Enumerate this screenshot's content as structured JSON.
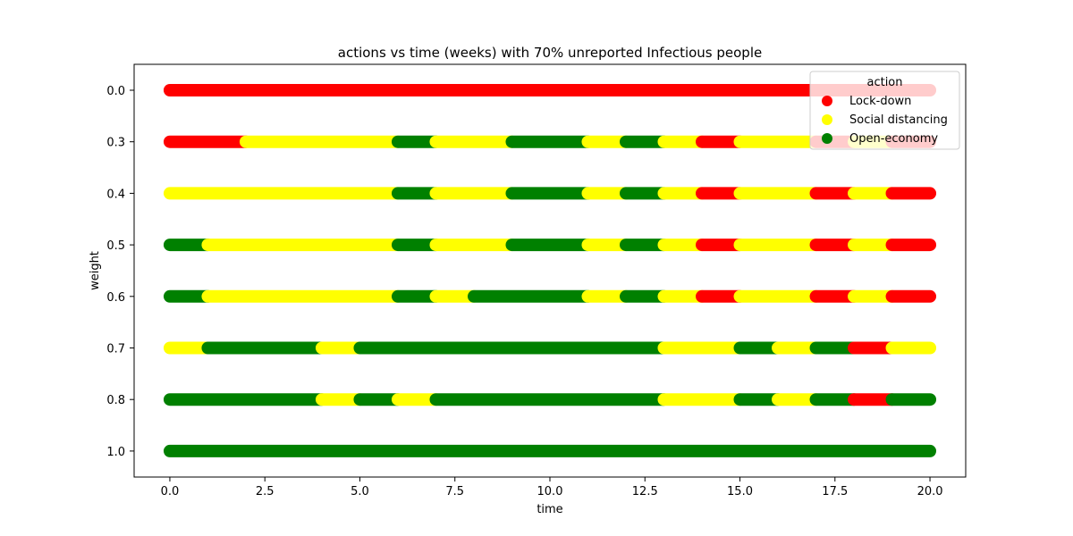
{
  "chart_data": {
    "type": "scatter",
    "title": "actions vs time (weeks) with 70% unreported Infectious people",
    "xlabel": "time",
    "ylabel": "weight",
    "xlim": [
      -0.94,
      20.94
    ],
    "x_ticks": [
      0.0,
      2.5,
      5.0,
      7.5,
      10.0,
      12.5,
      15.0,
      17.5,
      20.0
    ],
    "x_tick_labels": [
      "0.0",
      "2.5",
      "5.0",
      "7.5",
      "10.0",
      "12.5",
      "15.0",
      "17.5",
      "20.0"
    ],
    "y_categories": [
      "0.0",
      "0.3",
      "0.4",
      "0.5",
      "0.6",
      "0.7",
      "0.8",
      "1.0"
    ],
    "grid": false,
    "legend": {
      "title": "action",
      "placement": "upper-right",
      "entries": [
        {
          "label": "Lock-down",
          "color": "#ff0000"
        },
        {
          "label": "Social distancing",
          "color": "#ffff00"
        },
        {
          "label": "Open-economy",
          "color": "#008000"
        }
      ]
    },
    "colors": {
      "Lock-down": "#ff0000",
      "Social distancing": "#ffff00",
      "Open-economy": "#008000"
    },
    "series": [
      {
        "weight": "0.0",
        "segments": [
          {
            "start": 0,
            "end": 20,
            "action": "Lock-down"
          }
        ]
      },
      {
        "weight": "0.3",
        "segments": [
          {
            "start": 0,
            "end": 2,
            "action": "Lock-down"
          },
          {
            "start": 2,
            "end": 6,
            "action": "Social distancing"
          },
          {
            "start": 6,
            "end": 7,
            "action": "Open-economy"
          },
          {
            "start": 7,
            "end": 9,
            "action": "Social distancing"
          },
          {
            "start": 9,
            "end": 11,
            "action": "Open-economy"
          },
          {
            "start": 11,
            "end": 12,
            "action": "Social distancing"
          },
          {
            "start": 12,
            "end": 13,
            "action": "Open-economy"
          },
          {
            "start": 13,
            "end": 14,
            "action": "Social distancing"
          },
          {
            "start": 14,
            "end": 15,
            "action": "Lock-down"
          },
          {
            "start": 15,
            "end": 17,
            "action": "Social distancing"
          },
          {
            "start": 17,
            "end": 18,
            "action": "Lock-down"
          },
          {
            "start": 18,
            "end": 19,
            "action": "Social distancing"
          },
          {
            "start": 19,
            "end": 20,
            "action": "Lock-down"
          }
        ]
      },
      {
        "weight": "0.4",
        "segments": [
          {
            "start": 0,
            "end": 6,
            "action": "Social distancing"
          },
          {
            "start": 6,
            "end": 7,
            "action": "Open-economy"
          },
          {
            "start": 7,
            "end": 9,
            "action": "Social distancing"
          },
          {
            "start": 9,
            "end": 11,
            "action": "Open-economy"
          },
          {
            "start": 11,
            "end": 12,
            "action": "Social distancing"
          },
          {
            "start": 12,
            "end": 13,
            "action": "Open-economy"
          },
          {
            "start": 13,
            "end": 14,
            "action": "Social distancing"
          },
          {
            "start": 14,
            "end": 15,
            "action": "Lock-down"
          },
          {
            "start": 15,
            "end": 17,
            "action": "Social distancing"
          },
          {
            "start": 17,
            "end": 18,
            "action": "Lock-down"
          },
          {
            "start": 18,
            "end": 19,
            "action": "Social distancing"
          },
          {
            "start": 19,
            "end": 20,
            "action": "Lock-down"
          }
        ]
      },
      {
        "weight": "0.5",
        "segments": [
          {
            "start": 0,
            "end": 1,
            "action": "Open-economy"
          },
          {
            "start": 1,
            "end": 6,
            "action": "Social distancing"
          },
          {
            "start": 6,
            "end": 7,
            "action": "Open-economy"
          },
          {
            "start": 7,
            "end": 9,
            "action": "Social distancing"
          },
          {
            "start": 9,
            "end": 11,
            "action": "Open-economy"
          },
          {
            "start": 11,
            "end": 12,
            "action": "Social distancing"
          },
          {
            "start": 12,
            "end": 13,
            "action": "Open-economy"
          },
          {
            "start": 13,
            "end": 14,
            "action": "Social distancing"
          },
          {
            "start": 14,
            "end": 15,
            "action": "Lock-down"
          },
          {
            "start": 15,
            "end": 17,
            "action": "Social distancing"
          },
          {
            "start": 17,
            "end": 18,
            "action": "Lock-down"
          },
          {
            "start": 18,
            "end": 19,
            "action": "Social distancing"
          },
          {
            "start": 19,
            "end": 20,
            "action": "Lock-down"
          }
        ]
      },
      {
        "weight": "0.6",
        "segments": [
          {
            "start": 0,
            "end": 1,
            "action": "Open-economy"
          },
          {
            "start": 1,
            "end": 6,
            "action": "Social distancing"
          },
          {
            "start": 6,
            "end": 7,
            "action": "Open-economy"
          },
          {
            "start": 7,
            "end": 8,
            "action": "Social distancing"
          },
          {
            "start": 8,
            "end": 11,
            "action": "Open-economy"
          },
          {
            "start": 11,
            "end": 12,
            "action": "Social distancing"
          },
          {
            "start": 12,
            "end": 13,
            "action": "Open-economy"
          },
          {
            "start": 13,
            "end": 14,
            "action": "Social distancing"
          },
          {
            "start": 14,
            "end": 15,
            "action": "Lock-down"
          },
          {
            "start": 15,
            "end": 17,
            "action": "Social distancing"
          },
          {
            "start": 17,
            "end": 18,
            "action": "Lock-down"
          },
          {
            "start": 18,
            "end": 19,
            "action": "Social distancing"
          },
          {
            "start": 19,
            "end": 20,
            "action": "Lock-down"
          }
        ]
      },
      {
        "weight": "0.7",
        "segments": [
          {
            "start": 0,
            "end": 1,
            "action": "Social distancing"
          },
          {
            "start": 1,
            "end": 4,
            "action": "Open-economy"
          },
          {
            "start": 4,
            "end": 5,
            "action": "Social distancing"
          },
          {
            "start": 5,
            "end": 13,
            "action": "Open-economy"
          },
          {
            "start": 13,
            "end": 15,
            "action": "Social distancing"
          },
          {
            "start": 15,
            "end": 16,
            "action": "Open-economy"
          },
          {
            "start": 16,
            "end": 17,
            "action": "Social distancing"
          },
          {
            "start": 17,
            "end": 18,
            "action": "Open-economy"
          },
          {
            "start": 18,
            "end": 19,
            "action": "Lock-down"
          },
          {
            "start": 19,
            "end": 20,
            "action": "Social distancing"
          }
        ]
      },
      {
        "weight": "0.8",
        "segments": [
          {
            "start": 0,
            "end": 4,
            "action": "Open-economy"
          },
          {
            "start": 4,
            "end": 5,
            "action": "Social distancing"
          },
          {
            "start": 5,
            "end": 6,
            "action": "Open-economy"
          },
          {
            "start": 6,
            "end": 7,
            "action": "Social distancing"
          },
          {
            "start": 7,
            "end": 13,
            "action": "Open-economy"
          },
          {
            "start": 13,
            "end": 15,
            "action": "Social distancing"
          },
          {
            "start": 15,
            "end": 16,
            "action": "Open-economy"
          },
          {
            "start": 16,
            "end": 17,
            "action": "Social distancing"
          },
          {
            "start": 17,
            "end": 18,
            "action": "Open-economy"
          },
          {
            "start": 18,
            "end": 19,
            "action": "Lock-down"
          },
          {
            "start": 19,
            "end": 20,
            "action": "Open-economy"
          }
        ]
      },
      {
        "weight": "1.0",
        "segments": [
          {
            "start": 0,
            "end": 20,
            "action": "Open-economy"
          }
        ]
      }
    ]
  }
}
